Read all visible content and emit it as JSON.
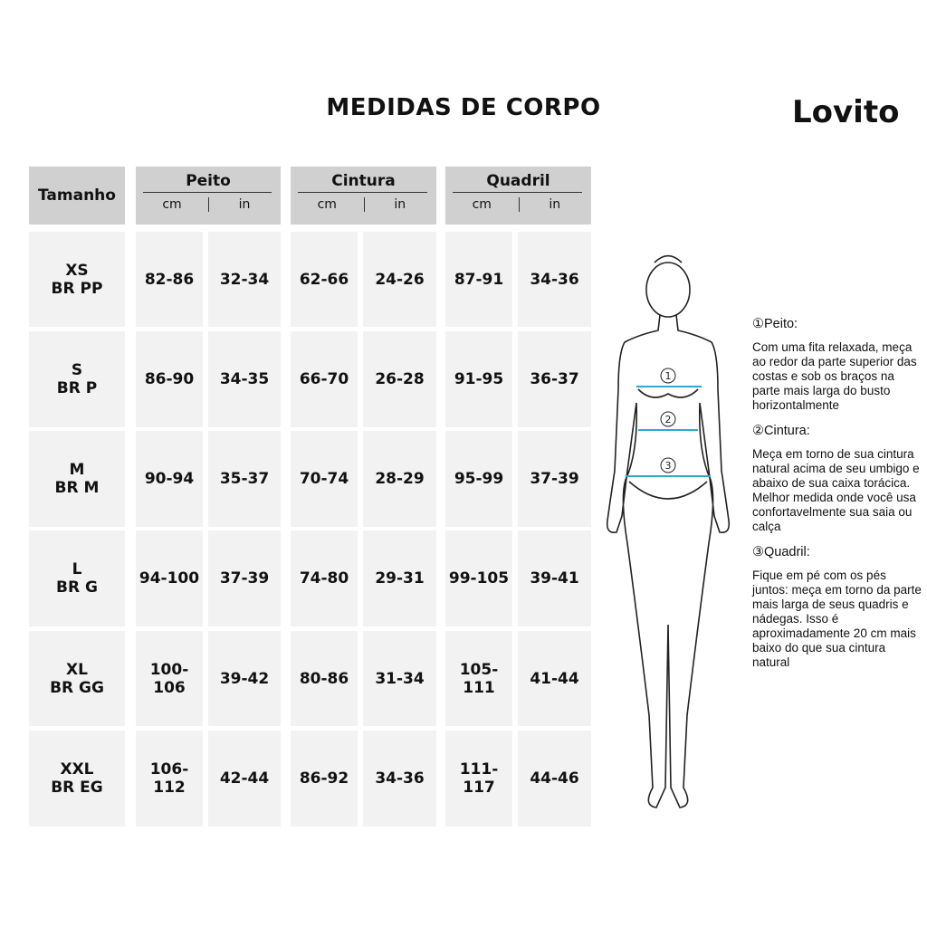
{
  "title": "MEDIDAS DE CORPO",
  "brand": "Lovito",
  "table": {
    "size_header": "Tamanho",
    "groups": [
      {
        "name": "Peito",
        "units": [
          "cm",
          "in"
        ]
      },
      {
        "name": "Cintura",
        "units": [
          "cm",
          "in"
        ]
      },
      {
        "name": "Quadril",
        "units": [
          "cm",
          "in"
        ]
      }
    ],
    "rows": [
      {
        "size": "XS",
        "br": "BR PP",
        "values": [
          "82-86",
          "32-34",
          "62-66",
          "24-26",
          "87-91",
          "34-36"
        ]
      },
      {
        "size": "S",
        "br": "BR P",
        "values": [
          "86-90",
          "34-35",
          "66-70",
          "26-28",
          "91-95",
          "36-37"
        ]
      },
      {
        "size": "M",
        "br": "BR M",
        "values": [
          "90-94",
          "35-37",
          "70-74",
          "28-29",
          "95-99",
          "37-39"
        ]
      },
      {
        "size": "L",
        "br": "BR G",
        "values": [
          "94-100",
          "37-39",
          "74-80",
          "29-31",
          "99-105",
          "39-41"
        ]
      },
      {
        "size": "XL",
        "br": "BR GG",
        "values": [
          "100-106",
          "39-42",
          "80-86",
          "31-34",
          "105-111",
          "41-44"
        ]
      },
      {
        "size": "XXL",
        "br": "BR EG",
        "values": [
          "106-112",
          "42-44",
          "86-92",
          "34-36",
          "111-117",
          "44-46"
        ]
      }
    ]
  },
  "figure": {
    "markers": [
      "1",
      "2",
      "3"
    ],
    "tape_color": "#29a9d6"
  },
  "notes": [
    {
      "heading": "①Peito:",
      "text": "Com uma fita relaxada, meça ao redor da parte superior das costas e sob os braços na parte mais larga do busto horizontalmente"
    },
    {
      "heading": "②Cintura:",
      "text": "Meça em torno de sua cintura natural acima de seu umbigo e abaixo de sua caixa torácica. Melhor medida onde você usa confortavelmente sua saia ou calça"
    },
    {
      "heading": "③Quadril:",
      "text": "Fique em pé com os pés juntos: meça em torno da parte mais larga de seus quadris e nádegas. Isso é aproximadamente 20 cm mais baixo do que sua cintura natural"
    }
  ]
}
